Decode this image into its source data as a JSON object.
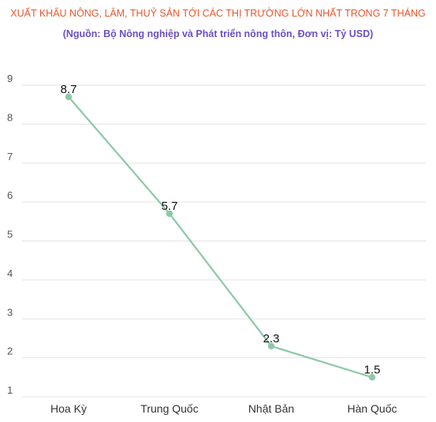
{
  "chart_data": {
    "type": "line",
    "title": "XUẤT KHẨU NÔNG, LÂM, THUỶ SẢN TỚI CÁC THỊ TRƯỜNG LỚN NHẤT TRONG 7 THÁNG",
    "subtitle": "(Nguồn:  Bộ Nông nghiệp và Phát triển nông thôn, Đơn vị: Tỷ USD)",
    "categories": [
      "Hoa Kỳ",
      "Trung Quốc",
      "Nhật Bản",
      "Hàn Quốc"
    ],
    "values": [
      8.7,
      5.7,
      2.3,
      1.5
    ],
    "value_labels": [
      "8.7",
      "5.7",
      "2.3",
      "1.5"
    ],
    "y_ticks": [
      "1",
      "2",
      "3",
      "4",
      "5",
      "6",
      "7",
      "8",
      "9"
    ],
    "ylim": [
      1,
      9
    ],
    "grid": true,
    "line_color": "#8cc9a6",
    "title_color": "#e8572e",
    "subtitle_color": "#6b4fc4"
  }
}
